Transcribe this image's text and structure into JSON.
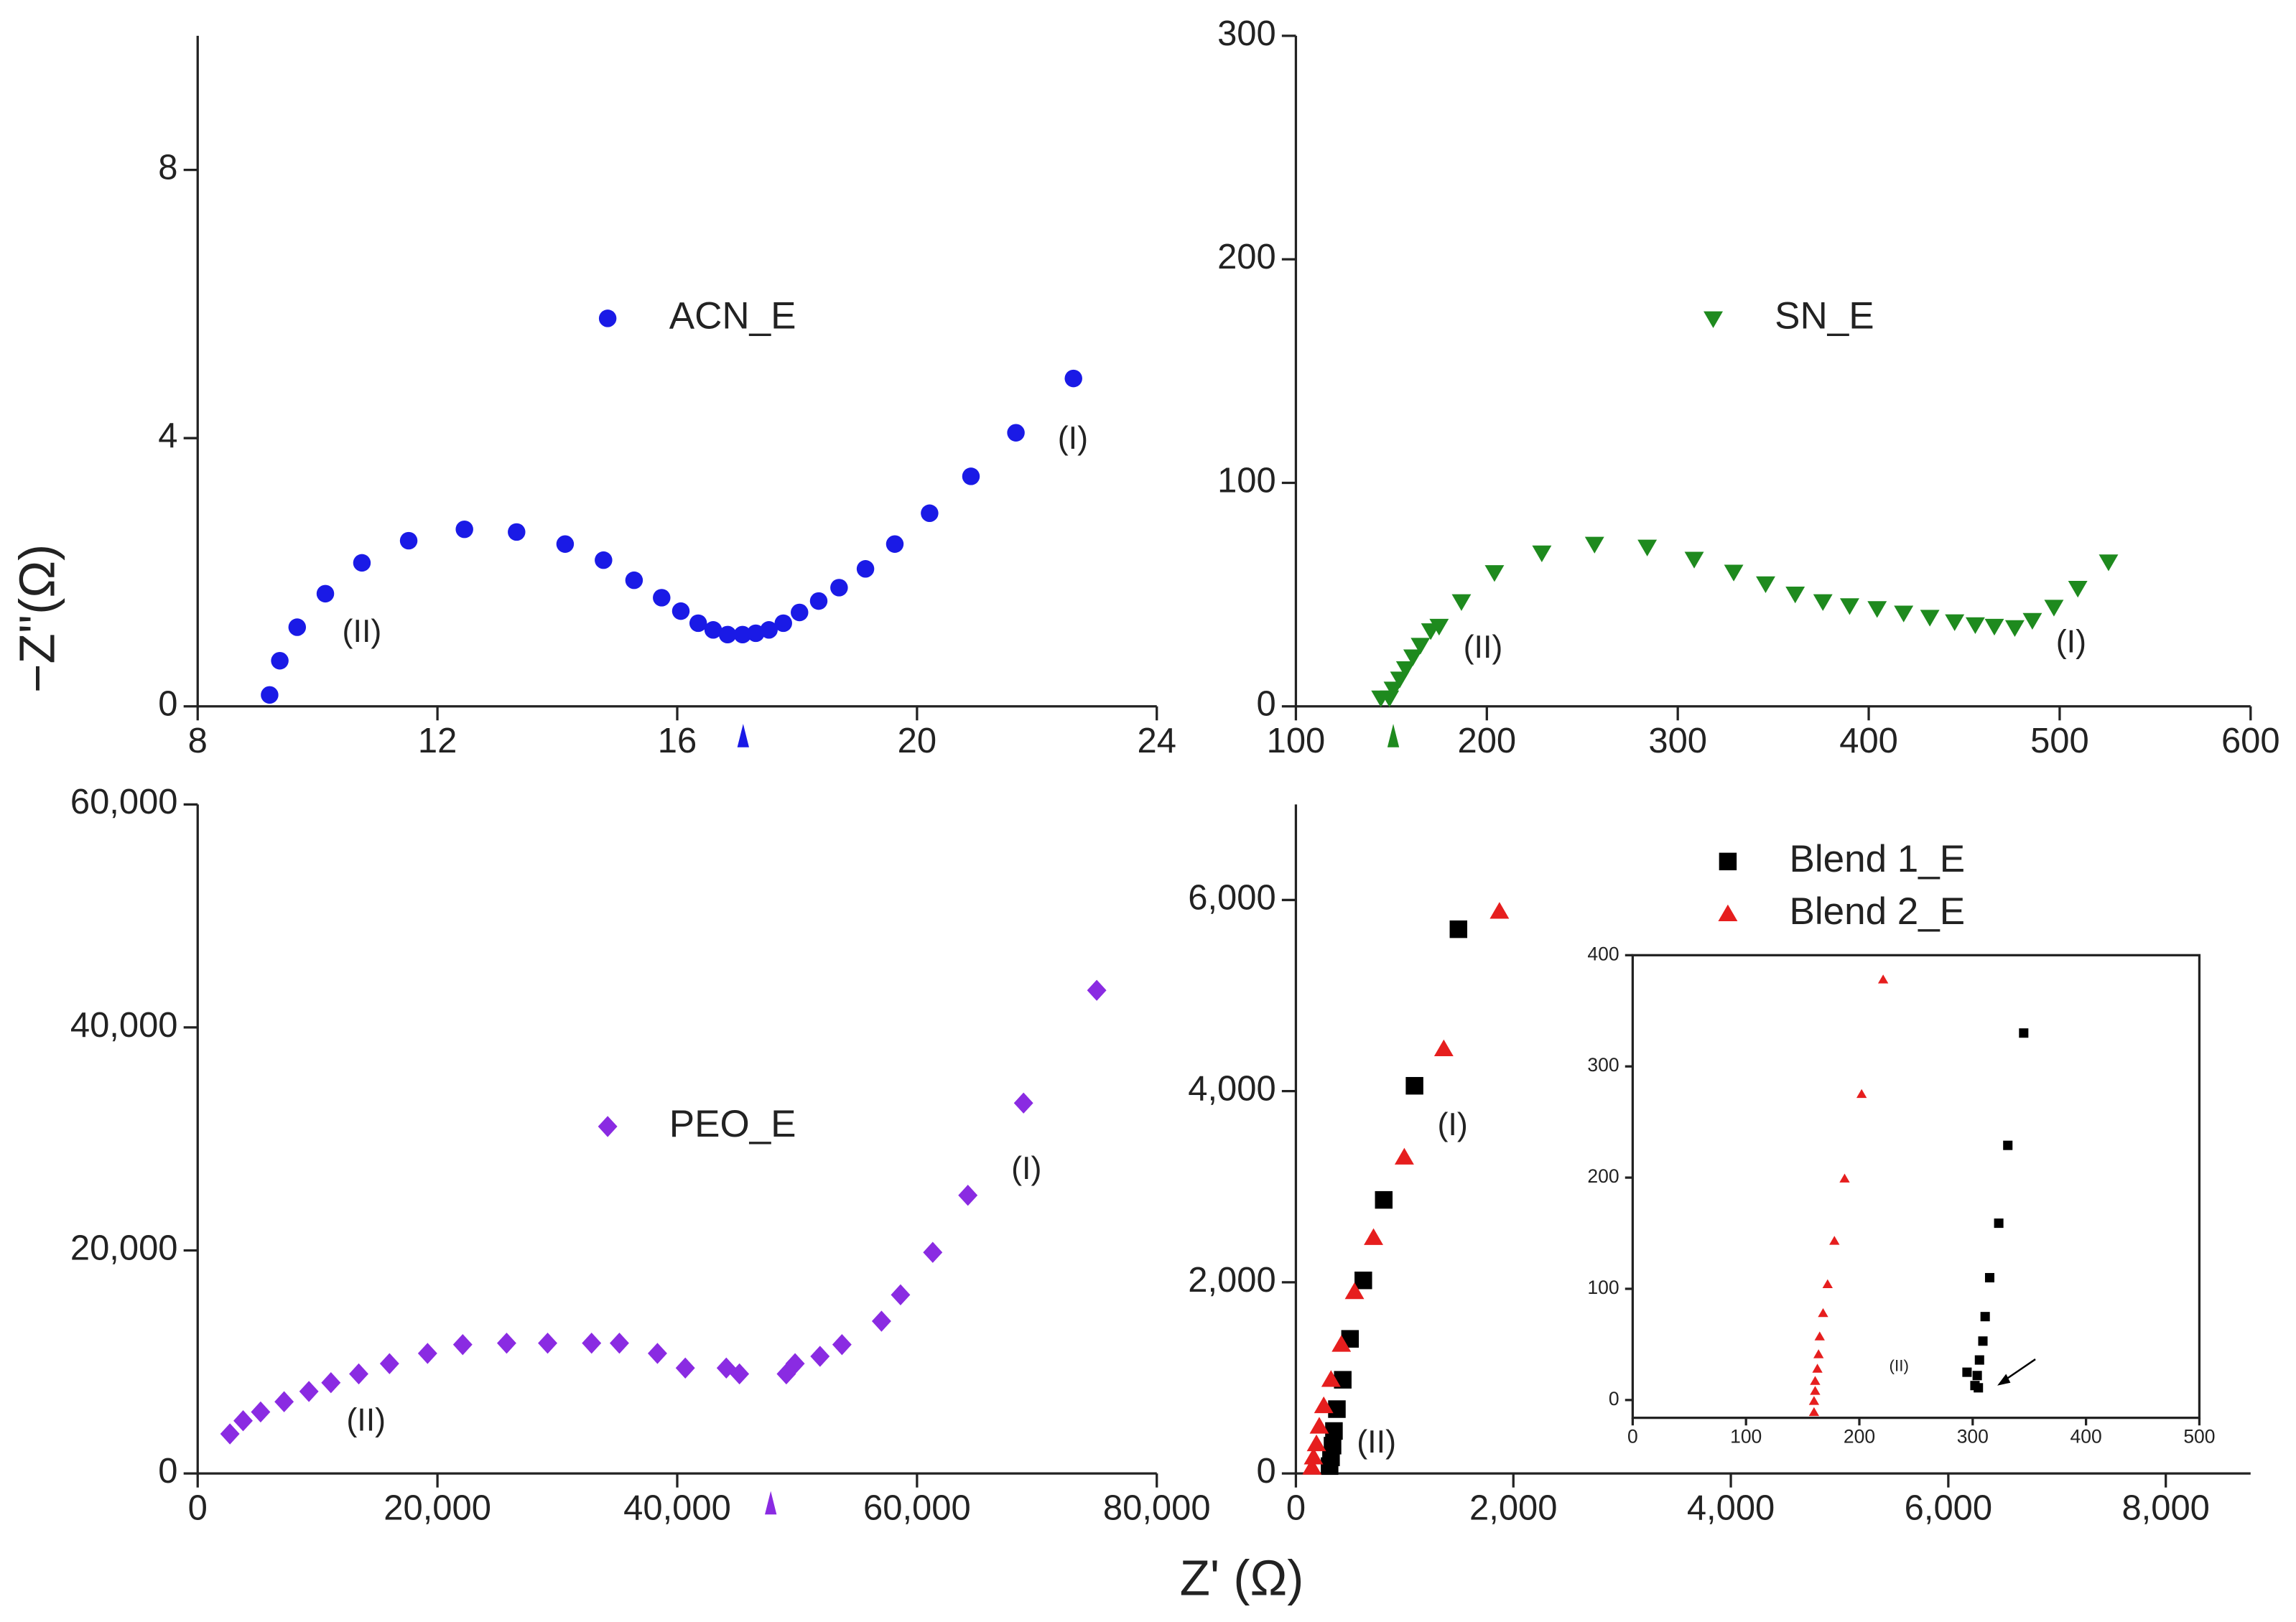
{
  "x_label": "Z' (Ω)",
  "y_label": "−Z''(Ω)",
  "chart_data": [
    {
      "type": "scatter",
      "xlim": [
        8,
        24
      ],
      "xticks": [
        8,
        12,
        16,
        20,
        24
      ],
      "ylim": [
        0,
        10
      ],
      "yticks": [
        0,
        4,
        8
      ],
      "marker_x": 17.1,
      "series": [
        {
          "name": "ACN_E",
          "color": "#1a1ae6",
          "marker": "circle",
          "x": [
            9.2,
            9.37,
            9.66,
            10.13,
            10.74,
            11.52,
            12.45,
            13.32,
            14.13,
            14.77,
            15.28,
            15.74,
            16.06,
            16.35,
            16.6,
            16.84,
            17.09,
            17.31,
            17.53,
            17.77,
            18.04,
            18.36,
            18.7,
            19.14,
            19.63,
            20.21,
            20.9,
            21.65,
            22.61
          ],
          "values": [
            0.17,
            0.68,
            1.18,
            1.68,
            2.14,
            2.47,
            2.64,
            2.6,
            2.42,
            2.18,
            1.88,
            1.62,
            1.42,
            1.24,
            1.14,
            1.07,
            1.07,
            1.09,
            1.14,
            1.24,
            1.4,
            1.57,
            1.77,
            2.05,
            2.42,
            2.88,
            3.43,
            4.08,
            4.89
          ]
        }
      ],
      "annotations": [
        {
          "text": "(I)",
          "x": 22.6,
          "y": 3.97
        },
        {
          "text": "(II)",
          "x": 10.74,
          "y": 1.09
        }
      ]
    },
    {
      "type": "scatter",
      "xlim": [
        100,
        600
      ],
      "xticks": [
        100,
        200,
        300,
        400,
        500,
        600
      ],
      "ylim": [
        0,
        300
      ],
      "yticks": [
        0,
        100,
        200,
        300
      ],
      "marker_x": 151,
      "series": [
        {
          "name": "SN_E",
          "color": "#1e8a1e",
          "marker": "triangle-down",
          "x": [
            144.5,
            149,
            151,
            154.4,
            157.5,
            161.3,
            165.2,
            170.6,
            175,
            186.7,
            204,
            228.8,
            256.4,
            284,
            308.6,
            329.3,
            346,
            361.5,
            376,
            390,
            404.4,
            418.3,
            432,
            445,
            455.8,
            465.8,
            476.5,
            485.7,
            497,
            509.5,
            525.6
          ],
          "values": [
            3.9,
            3.9,
            7.9,
            12.4,
            17,
            22.3,
            27.5,
            34,
            36,
            47,
            60,
            68.8,
            72.7,
            71.4,
            66,
            60.2,
            55,
            50.4,
            47,
            45.2,
            43.9,
            41.9,
            40,
            38,
            36.7,
            36,
            35.4,
            38.6,
            44.5,
            53,
            64.8
          ]
        }
      ],
      "annotations": [
        {
          "text": "(II)",
          "x": 198,
          "y": 25.5
        },
        {
          "text": "(I)",
          "x": 506,
          "y": 28
        }
      ]
    },
    {
      "type": "scatter",
      "xlim": [
        0,
        80000
      ],
      "xticks": [
        0,
        {
          "value": 20000,
          "label": "20,000"
        },
        {
          "value": 40000,
          "label": "40,000"
        },
        {
          "value": 60000,
          "label": "60,000"
        },
        {
          "value": 80000,
          "label": "80,000"
        }
      ],
      "ylim": [
        0,
        60000
      ],
      "yticks": [
        0,
        {
          "value": 20000,
          "label": "20,000"
        },
        {
          "value": 40000,
          "label": "40,000"
        },
        {
          "value": 60000,
          "label": "60,000"
        }
      ],
      "marker_x": 47800,
      "series": [
        {
          "name": "PEO_E",
          "color": "#8a2be2",
          "marker": "diamond",
          "x": [
            2690,
            3790,
            5250,
            7210,
            9280,
            11115,
            13435,
            16000,
            19175,
            22107,
            25771,
            29190,
            32855,
            35175,
            38350,
            40672,
            44092,
            45190,
            49100,
            49830,
            51908,
            53740,
            57038,
            58626,
            61313,
            64244,
            68886,
            74992
          ],
          "values": [
            3545,
            4726,
            5514,
            6433,
            7352,
            8140,
            8928,
            9847,
            10766,
            11554,
            11685,
            11685,
            11685,
            11685,
            10766,
            9453,
            9453,
            8928,
            8928,
            9847,
            10503,
            11554,
            13654,
            16018,
            19825,
            24945,
            33217,
            43327
          ]
        }
      ],
      "annotations": [
        {
          "text": "(I)",
          "x": 69130,
          "y": 27180
        },
        {
          "text": "(II)",
          "x": 14045,
          "y": 4595
        }
      ]
    },
    {
      "type": "scatter",
      "xlim": [
        0,
        8780
      ],
      "xticks": [
        0,
        {
          "value": 2000,
          "label": "2,000"
        },
        {
          "value": 4000,
          "label": "4,000"
        },
        {
          "value": 6000,
          "label": "6,000"
        },
        {
          "value": 8000,
          "label": "8,000"
        }
      ],
      "ylim": [
        0,
        7000
      ],
      "yticks": [
        0,
        {
          "value": 2000,
          "label": "2,000"
        },
        {
          "value": 4000,
          "label": "4,000"
        },
        {
          "value": 6000,
          "label": "6,000"
        }
      ],
      "series": [
        {
          "name": "Blend 1_E",
          "color": "#000000",
          "marker": "square",
          "x": [
            1495,
            1091,
            808,
            620,
            498,
            431,
            377,
            350,
            337,
            323,
            310
          ],
          "values": [
            5694,
            4056,
            2862,
            2020,
            1408,
            980,
            673,
            444,
            291,
            168,
            77
          ]
        },
        {
          "name": "Blend 2_E",
          "color": "#e61e1e",
          "marker": "triangle-up",
          "x": [
            1872,
            1360,
            997,
            714,
            539,
            418,
            323,
            256,
            215,
            189,
            162,
            148
          ],
          "values": [
            5878,
            4439,
            3306,
            2464,
            1898,
            1347,
            980,
            704,
            490,
            306,
            168,
            61
          ]
        }
      ],
      "annotations": [
        {
          "text": "(I)",
          "x": 1441,
          "y": 3628
        },
        {
          "text": "(II)",
          "x": 741,
          "y": 306
        }
      ]
    },
    {
      "type": "scatter",
      "xlim": [
        0,
        500
      ],
      "xticks": [
        0,
        100,
        200,
        300,
        400,
        500
      ],
      "ylim": [
        -16,
        400
      ],
      "yticks": [
        0,
        100,
        200,
        300,
        400
      ],
      "series": [
        {
          "color": "#000000",
          "marker": "square",
          "x": [
            345,
            331,
            323,
            315,
            311,
            309,
            306,
            304,
            295,
            302,
            305
          ],
          "values": [
            330,
            229,
            159,
            110,
            75,
            53,
            36,
            22,
            25,
            13,
            11
          ]
        },
        {
          "color": "#e61e1e",
          "marker": "triangle-up",
          "x": [
            221,
            202,
            187,
            178,
            172,
            168,
            165,
            164,
            163,
            161,
            161,
            160,
            160
          ],
          "values": [
            378,
            275,
            199,
            143,
            104,
            78,
            57,
            41,
            28,
            17,
            8,
            -1,
            -11
          ]
        }
      ],
      "annotations": [
        {
          "text": "(II)",
          "x": 235,
          "y": 30
        }
      ]
    }
  ]
}
